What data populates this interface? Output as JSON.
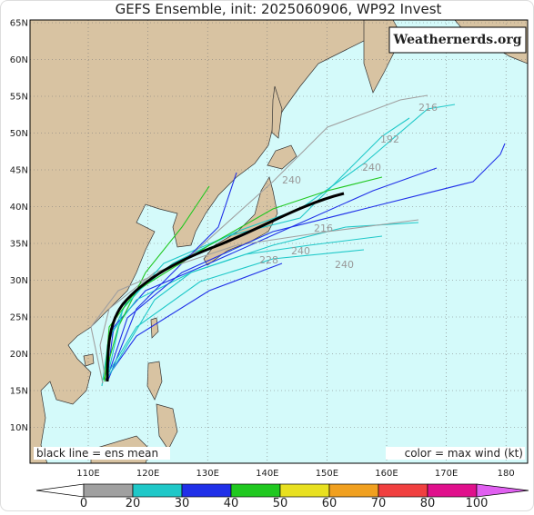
{
  "title": "GEFS Ensemble, init: 2025060906, WP92 Invest",
  "watermark": "Weathernerds.org",
  "map": {
    "lat_labels": [
      "65N",
      "60N",
      "55N",
      "50N",
      "45N",
      "40N",
      "35N",
      "30N",
      "25N",
      "20N",
      "15N",
      "10N"
    ],
    "lon_labels": [
      "110E",
      "120E",
      "130E",
      "140E",
      "150E",
      "160E",
      "170E",
      "180"
    ],
    "note_left": "black line = ens mean",
    "note_right": "color = max wind (kt)",
    "track_labels": [
      "240",
      "216",
      "192",
      "240",
      "240",
      "216",
      "228",
      "240"
    ]
  },
  "colorbar": {
    "ticks": [
      0,
      20,
      30,
      40,
      50,
      60,
      70,
      80,
      100
    ],
    "colors": [
      "#ffffff",
      "#a0a0a0",
      "#1fc8c8",
      "#2030e8",
      "#20c820",
      "#e8e020",
      "#f0a020",
      "#f04040",
      "#e0108c",
      "#e060f0"
    ]
  }
}
